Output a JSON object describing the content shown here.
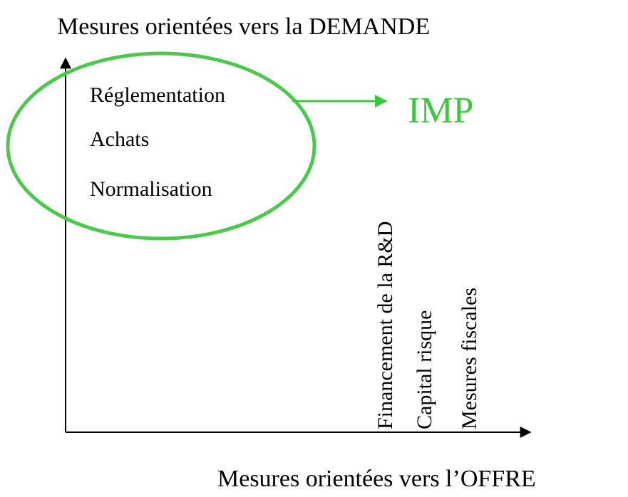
{
  "y_axis_title": "Mesures orientées vers la DEMANDE",
  "x_axis_title": "Mesures orientées vers l’OFFRE",
  "demand_items": [
    "Réglementation",
    "Achats",
    "Normalisation"
  ],
  "supply_items": [
    "Financement de la R&D",
    "Capital risque",
    "Mesures fiscales"
  ],
  "highlight_label": "IMP"
}
